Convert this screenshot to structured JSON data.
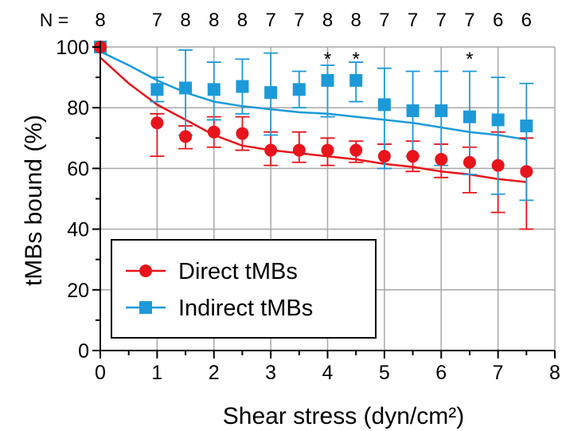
{
  "chart_data": {
    "type": "scatter",
    "title": "",
    "xlabel": "Shear stress (dyn/cm²)",
    "ylabel": "tMBs bound (%)",
    "xlim": [
      0,
      8
    ],
    "ylim": [
      0,
      100
    ],
    "xticks": [
      0,
      1,
      2,
      3,
      4,
      5,
      6,
      7,
      8
    ],
    "yticks": [
      0,
      20,
      40,
      60,
      80,
      100
    ],
    "grid": true,
    "legend_position": "bottom-left",
    "n_prefix": "N =",
    "n_labels": [
      {
        "x": 0,
        "n": "8"
      },
      {
        "x": 1,
        "n": "7"
      },
      {
        "x": 1.5,
        "n": "8"
      },
      {
        "x": 2,
        "n": "8"
      },
      {
        "x": 2.5,
        "n": "8"
      },
      {
        "x": 3,
        "n": "7"
      },
      {
        "x": 3.5,
        "n": "7"
      },
      {
        "x": 4,
        "n": "8"
      },
      {
        "x": 4.5,
        "n": "8"
      },
      {
        "x": 5,
        "n": "7"
      },
      {
        "x": 5.5,
        "n": "7"
      },
      {
        "x": 6,
        "n": "7"
      },
      {
        "x": 6.5,
        "n": "7"
      },
      {
        "x": 7,
        "n": "6"
      },
      {
        "x": 7.5,
        "n": "6"
      }
    ],
    "significance": [
      {
        "x": 4,
        "label": "*"
      },
      {
        "x": 4.5,
        "label": "*"
      },
      {
        "x": 6.5,
        "label": "*"
      }
    ],
    "series": [
      {
        "name": "Direct tMBs",
        "marker": "circle",
        "color": "#e8141b",
        "points": [
          {
            "x": 0,
            "y": 100,
            "lo": 100,
            "hi": 100
          },
          {
            "x": 1,
            "y": 75,
            "lo": 64,
            "hi": 78
          },
          {
            "x": 1.5,
            "y": 70.5,
            "lo": 66.5,
            "hi": 74
          },
          {
            "x": 2,
            "y": 72,
            "lo": 67,
            "hi": 77
          },
          {
            "x": 2.5,
            "y": 71.5,
            "lo": 66,
            "hi": 77
          },
          {
            "x": 3,
            "y": 66,
            "lo": 61,
            "hi": 72
          },
          {
            "x": 3.5,
            "y": 66,
            "lo": 62,
            "hi": 72
          },
          {
            "x": 4,
            "y": 66,
            "lo": 61,
            "hi": 70
          },
          {
            "x": 4.5,
            "y": 66,
            "lo": 62,
            "hi": 69
          },
          {
            "x": 5,
            "y": 64,
            "lo": 60,
            "hi": 68
          },
          {
            "x": 5.5,
            "y": 64,
            "lo": 59,
            "hi": 69
          },
          {
            "x": 6,
            "y": 63,
            "lo": 57,
            "hi": 68
          },
          {
            "x": 6.5,
            "y": 62,
            "lo": 52,
            "hi": 67
          },
          {
            "x": 7,
            "y": 61,
            "lo": 45.5,
            "hi": 72
          },
          {
            "x": 7.5,
            "y": 59,
            "lo": 40,
            "hi": 70
          }
        ],
        "fit": [
          [
            0,
            96.5
          ],
          [
            0.5,
            88
          ],
          [
            1,
            81
          ],
          [
            1.5,
            76
          ],
          [
            2,
            71
          ],
          [
            2.5,
            67.5
          ],
          [
            3,
            66
          ],
          [
            3.5,
            65
          ],
          [
            4,
            64
          ],
          [
            4.5,
            63
          ],
          [
            5,
            61.5
          ],
          [
            5.5,
            60.5
          ],
          [
            6,
            59
          ],
          [
            6.5,
            58
          ],
          [
            7,
            56.5
          ],
          [
            7.5,
            55.5
          ]
        ]
      },
      {
        "name": "Indirect tMBs",
        "marker": "square",
        "color": "#1c9ad8",
        "points": [
          {
            "x": 0,
            "y": 100,
            "lo": 100,
            "hi": 100
          },
          {
            "x": 1,
            "y": 86,
            "lo": 82,
            "hi": 90
          },
          {
            "x": 1.5,
            "y": 86.5,
            "lo": 71,
            "hi": 99
          },
          {
            "x": 2,
            "y": 86,
            "lo": 76,
            "hi": 95
          },
          {
            "x": 2.5,
            "y": 87,
            "lo": 78,
            "hi": 96
          },
          {
            "x": 3,
            "y": 85,
            "lo": 71,
            "hi": 98
          },
          {
            "x": 3.5,
            "y": 86,
            "lo": 80,
            "hi": 92
          },
          {
            "x": 4,
            "y": 89,
            "lo": 77,
            "hi": 94
          },
          {
            "x": 4.5,
            "y": 89,
            "lo": 82,
            "hi": 95
          },
          {
            "x": 5,
            "y": 81,
            "lo": 60,
            "hi": 93
          },
          {
            "x": 5.5,
            "y": 79,
            "lo": 64,
            "hi": 92
          },
          {
            "x": 6,
            "y": 79,
            "lo": 61,
            "hi": 92
          },
          {
            "x": 6.5,
            "y": 77,
            "lo": 58,
            "hi": 92
          },
          {
            "x": 7,
            "y": 76,
            "lo": 51.5,
            "hi": 90
          },
          {
            "x": 7.5,
            "y": 74,
            "lo": 49.5,
            "hi": 88
          }
        ],
        "fit": [
          [
            0,
            98.5
          ],
          [
            0.5,
            94
          ],
          [
            1,
            89
          ],
          [
            1.5,
            85
          ],
          [
            2,
            82
          ],
          [
            2.5,
            80.5
          ],
          [
            3,
            79.5
          ],
          [
            3.5,
            78.5
          ],
          [
            4,
            78
          ],
          [
            4.5,
            77
          ],
          [
            5,
            76
          ],
          [
            5.5,
            75
          ],
          [
            6,
            73.5
          ],
          [
            6.5,
            72
          ],
          [
            7,
            71
          ],
          [
            7.5,
            69.5
          ]
        ]
      }
    ]
  }
}
